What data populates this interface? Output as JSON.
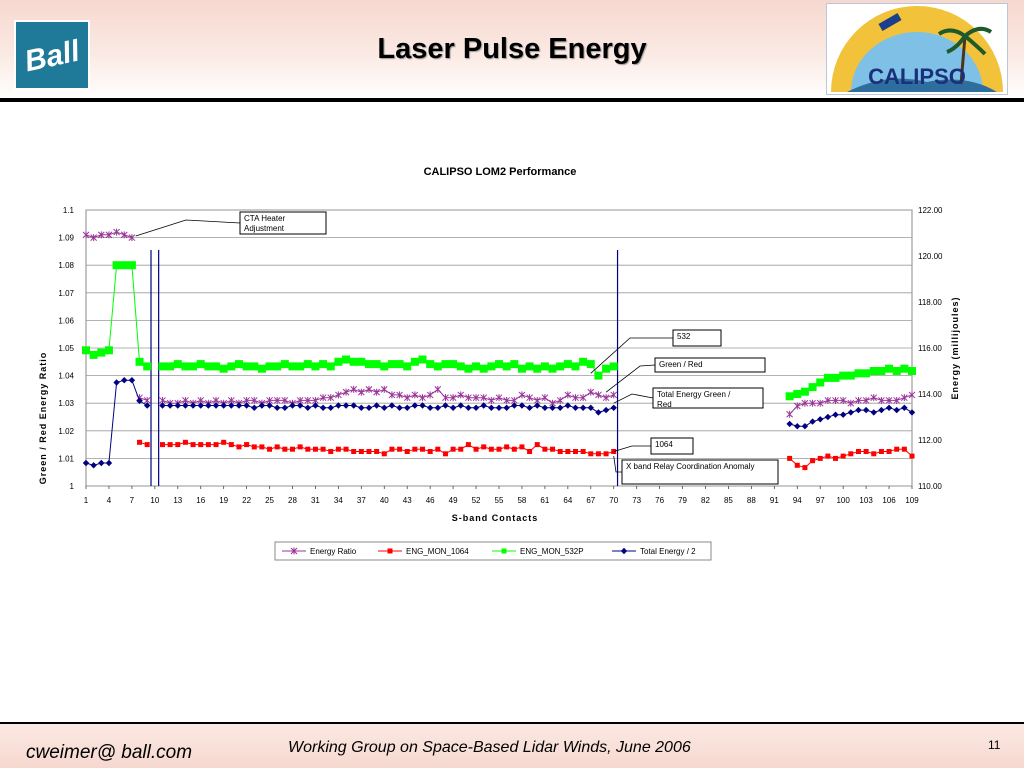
{
  "slide": {
    "title": "Laser Pulse Energy",
    "logo_left_text": "Ball",
    "logo_right_text": "CALIPSO",
    "footer_email": "cweimer@ ball.com",
    "footer_center": "Working Group on Space-Based Lidar Winds, June 2006",
    "page_number": "11"
  },
  "colors": {
    "energy_ratio": "#993399",
    "eng_mon_1064": "#ff0000",
    "eng_mon_532p": "#00ff00",
    "total_energy": "#000080"
  },
  "chart_data": {
    "type": "line",
    "title": "CALIPSO LOM2 Performance",
    "xlabel": "S-band Contacts",
    "ylabel_left": "Green / Red Energy Ratio",
    "ylabel_right": "Energy (millijoules)",
    "ylim_left": [
      1,
      1.1
    ],
    "ylim_right": [
      110,
      122
    ],
    "xlim": [
      1,
      109
    ],
    "left_ticks": [
      "1",
      "1.01",
      "1.02",
      "1.03",
      "1.04",
      "1.05",
      "1.06",
      "1.07",
      "1.08",
      "1.09",
      "1.1"
    ],
    "right_ticks": [
      "110.00",
      "112.00",
      "114.00",
      "116.00",
      "118.00",
      "120.00",
      "122.00"
    ],
    "x_ticks": [
      "1",
      "4",
      "7",
      "10",
      "13",
      "16",
      "19",
      "22",
      "25",
      "28",
      "31",
      "34",
      "37",
      "40",
      "43",
      "46",
      "49",
      "52",
      "55",
      "58",
      "61",
      "64",
      "67",
      "70",
      "73",
      "76",
      "79",
      "82",
      "85",
      "88",
      "91",
      "94",
      "97",
      "100",
      "103",
      "106",
      "109"
    ],
    "grid": "horizontal",
    "legend_position": "bottom",
    "series": [
      {
        "name": "Energy Ratio",
        "axis": "left",
        "marker": "star",
        "segments": [
          {
            "x": [
              1,
              2,
              3,
              4,
              5,
              6,
              7
            ],
            "y": [
              1.091,
              1.09,
              1.091,
              1.091,
              1.092,
              1.091,
              1.09
            ]
          },
          {
            "x": [
              8,
              9
            ],
            "y": [
              1.032,
              1.031
            ]
          },
          {
            "x": [
              11,
              12,
              13,
              14,
              15,
              16,
              17,
              18,
              19,
              20,
              21,
              22,
              23,
              24,
              25,
              26,
              27,
              28,
              29,
              30,
              31,
              32,
              33,
              34,
              35,
              36,
              37,
              38,
              39,
              40,
              41,
              42,
              43,
              44,
              45,
              46,
              47,
              48,
              49,
              50,
              51,
              52,
              53,
              54,
              55,
              56,
              57,
              58,
              59,
              60,
              61,
              62,
              63,
              64,
              65,
              66,
              67,
              68,
              69,
              70
            ],
            "y": [
              1.031,
              1.03,
              1.03,
              1.031,
              1.03,
              1.031,
              1.03,
              1.031,
              1.03,
              1.031,
              1.03,
              1.031,
              1.031,
              1.03,
              1.031,
              1.031,
              1.031,
              1.03,
              1.031,
              1.031,
              1.031,
              1.032,
              1.032,
              1.033,
              1.034,
              1.035,
              1.034,
              1.035,
              1.034,
              1.035,
              1.033,
              1.033,
              1.032,
              1.033,
              1.032,
              1.033,
              1.035,
              1.032,
              1.032,
              1.033,
              1.032,
              1.032,
              1.032,
              1.031,
              1.032,
              1.031,
              1.031,
              1.033,
              1.032,
              1.031,
              1.032,
              1.03,
              1.031,
              1.033,
              1.032,
              1.032,
              1.034,
              1.033,
              1.032,
              1.033
            ]
          },
          {
            "x": [
              93,
              94,
              95,
              96,
              97,
              98,
              99,
              100,
              101,
              102,
              103,
              104,
              105,
              106,
              107,
              108,
              109
            ],
            "y": [
              1.026,
              1.029,
              1.03,
              1.03,
              1.03,
              1.031,
              1.031,
              1.031,
              1.03,
              1.031,
              1.031,
              1.032,
              1.031,
              1.031,
              1.031,
              1.032,
              1.033
            ]
          }
        ]
      },
      {
        "name": "ENG_MON_1064",
        "axis": "right",
        "marker": "square",
        "segments": [
          {
            "x": [
              8,
              9
            ],
            "y": [
              111.9,
              111.8
            ]
          },
          {
            "x": [
              11,
              12,
              13,
              14,
              15,
              16,
              17,
              18,
              19,
              20,
              21,
              22,
              23,
              24,
              25,
              26,
              27,
              28,
              29,
              30,
              31,
              32,
              33,
              34,
              35,
              36,
              37,
              38,
              39,
              40,
              41,
              42,
              43,
              44,
              45,
              46,
              47,
              48,
              49,
              50,
              51,
              52,
              53,
              54,
              55,
              56,
              57,
              58,
              59,
              60,
              61,
              62,
              63,
              64,
              65,
              66,
              67,
              68,
              69,
              70
            ],
            "y": [
              111.8,
              111.8,
              111.8,
              111.9,
              111.8,
              111.8,
              111.8,
              111.8,
              111.9,
              111.8,
              111.7,
              111.8,
              111.7,
              111.7,
              111.6,
              111.7,
              111.6,
              111.6,
              111.7,
              111.6,
              111.6,
              111.6,
              111.5,
              111.6,
              111.6,
              111.5,
              111.5,
              111.5,
              111.5,
              111.4,
              111.6,
              111.6,
              111.5,
              111.6,
              111.6,
              111.5,
              111.6,
              111.4,
              111.6,
              111.6,
              111.8,
              111.6,
              111.7,
              111.6,
              111.6,
              111.7,
              111.6,
              111.7,
              111.5,
              111.8,
              111.6,
              111.6,
              111.5,
              111.5,
              111.5,
              111.5,
              111.4,
              111.4,
              111.4,
              111.5
            ]
          },
          {
            "x": [
              93,
              94,
              95,
              96,
              97,
              98,
              99,
              100,
              101,
              102,
              103,
              104,
              105,
              106,
              107,
              108,
              109
            ],
            "y": [
              111.2,
              110.9,
              110.8,
              111.1,
              111.2,
              111.3,
              111.2,
              111.3,
              111.4,
              111.5,
              111.5,
              111.4,
              111.5,
              111.5,
              111.6,
              111.6,
              111.3
            ]
          }
        ]
      },
      {
        "name": "ENG_MON_532P",
        "axis": "right",
        "marker": "square",
        "segments": [
          {
            "x": [
              1,
              2,
              3,
              4,
              5,
              6,
              7,
              8,
              9
            ],
            "y": [
              115.9,
              115.7,
              115.8,
              115.9,
              119.6,
              119.6,
              119.6,
              115.4,
              115.2
            ]
          },
          {
            "x": [
              11,
              12,
              13,
              14,
              15,
              16,
              17,
              18,
              19,
              20,
              21,
              22,
              23,
              24,
              25,
              26,
              27,
              28,
              29,
              30,
              31,
              32,
              33,
              34,
              35,
              36,
              37,
              38,
              39,
              40,
              41,
              42,
              43,
              44,
              45,
              46,
              47,
              48,
              49,
              50,
              51,
              52,
              53,
              54,
              55,
              56,
              57,
              58,
              59,
              60,
              61,
              62,
              63,
              64,
              65,
              66,
              67,
              68,
              69,
              70
            ],
            "y": [
              115.2,
              115.2,
              115.3,
              115.2,
              115.2,
              115.3,
              115.2,
              115.2,
              115.1,
              115.2,
              115.3,
              115.2,
              115.2,
              115.1,
              115.2,
              115.2,
              115.3,
              115.2,
              115.2,
              115.3,
              115.2,
              115.3,
              115.2,
              115.4,
              115.5,
              115.4,
              115.4,
              115.3,
              115.3,
              115.2,
              115.3,
              115.3,
              115.2,
              115.4,
              115.5,
              115.3,
              115.2,
              115.3,
              115.3,
              115.2,
              115.1,
              115.2,
              115.1,
              115.2,
              115.3,
              115.2,
              115.3,
              115.1,
              115.2,
              115.1,
              115.2,
              115.1,
              115.2,
              115.3,
              115.2,
              115.4,
              115.3,
              114.8,
              115.1,
              115.2
            ]
          },
          {
            "x": [
              93,
              94,
              95,
              96,
              97,
              98,
              99,
              100,
              101,
              102,
              103,
              104,
              105,
              106,
              107,
              108,
              109
            ],
            "y": [
              113.9,
              114.0,
              114.1,
              114.3,
              114.5,
              114.7,
              114.7,
              114.8,
              114.8,
              114.9,
              114.9,
              115.0,
              115.0,
              115.1,
              115.0,
              115.1,
              115.0
            ]
          }
        ]
      },
      {
        "name": "Total Energy / 2",
        "axis": "right",
        "marker": "diamond",
        "segments": [
          {
            "x": [
              1,
              2,
              3,
              4,
              5,
              6,
              7,
              8,
              9
            ],
            "y": [
              111.0,
              110.9,
              111.0,
              111.0,
              114.5,
              114.6,
              114.6,
              113.7,
              113.5
            ]
          },
          {
            "x": [
              11,
              12,
              13,
              14,
              15,
              16,
              17,
              18,
              19,
              20,
              21,
              22,
              23,
              24,
              25,
              26,
              27,
              28,
              29,
              30,
              31,
              32,
              33,
              34,
              35,
              36,
              37,
              38,
              39,
              40,
              41,
              42,
              43,
              44,
              45,
              46,
              47,
              48,
              49,
              50,
              51,
              52,
              53,
              54,
              55,
              56,
              57,
              58,
              59,
              60,
              61,
              62,
              63,
              64,
              65,
              66,
              67,
              68,
              69,
              70
            ],
            "y": [
              113.5,
              113.5,
              113.5,
              113.5,
              113.5,
              113.5,
              113.5,
              113.5,
              113.5,
              113.5,
              113.5,
              113.5,
              113.4,
              113.5,
              113.5,
              113.4,
              113.4,
              113.5,
              113.5,
              113.4,
              113.5,
              113.4,
              113.4,
              113.5,
              113.5,
              113.5,
              113.4,
              113.4,
              113.5,
              113.4,
              113.5,
              113.4,
              113.4,
              113.5,
              113.5,
              113.4,
              113.4,
              113.5,
              113.4,
              113.5,
              113.4,
              113.4,
              113.5,
              113.4,
              113.4,
              113.4,
              113.5,
              113.5,
              113.4,
              113.5,
              113.4,
              113.4,
              113.4,
              113.5,
              113.4,
              113.4,
              113.4,
              113.2,
              113.3,
              113.4
            ]
          },
          {
            "x": [
              93,
              94,
              95,
              96,
              97,
              98,
              99,
              100,
              101,
              102,
              103,
              104,
              105,
              106,
              107,
              108,
              109
            ],
            "y": [
              112.7,
              112.6,
              112.6,
              112.8,
              112.9,
              113.0,
              113.1,
              113.1,
              113.2,
              113.3,
              113.3,
              113.2,
              113.3,
              113.4,
              113.3,
              113.4,
              113.2
            ]
          }
        ]
      }
    ],
    "annotations": [
      {
        "label": "CTA Heater Adjustment",
        "at_x": 7.5
      },
      {
        "label": "532",
        "at_x": 67
      },
      {
        "label": "Green / Red",
        "at_x": 69
      },
      {
        "label": "Total Energy Green / Red",
        "at_x": 70
      },
      {
        "label": "1064",
        "at_x": 70
      },
      {
        "label": "X band Relay Coordination Anomaly",
        "at_x": 70
      }
    ],
    "event_markers_x": [
      9.5,
      10.5,
      70.5
    ]
  }
}
